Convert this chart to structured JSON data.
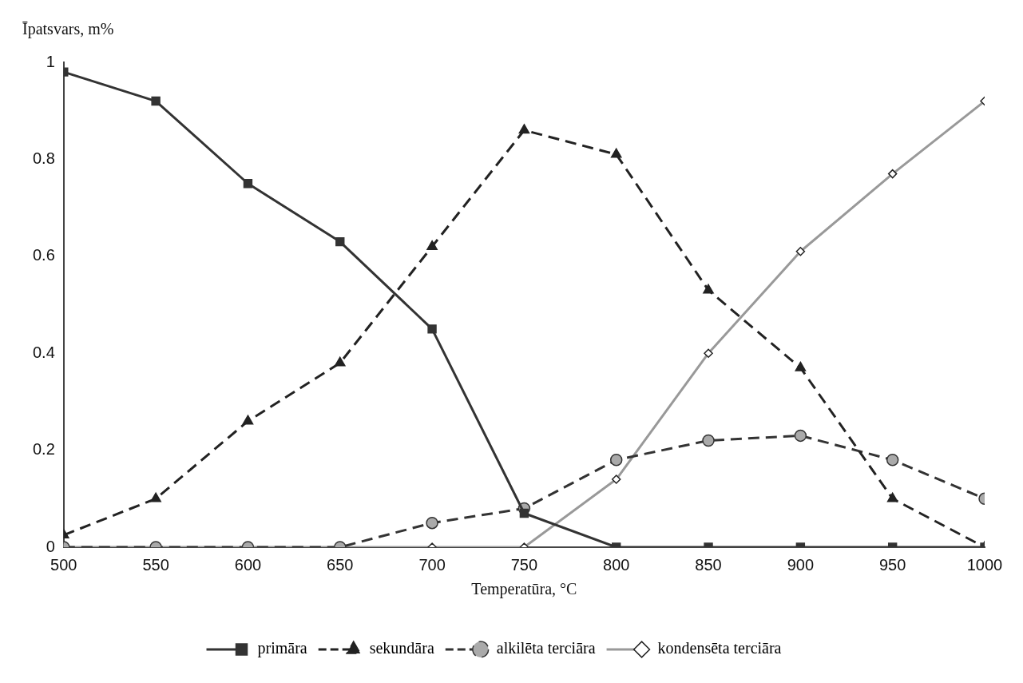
{
  "chart_data": {
    "type": "line",
    "xlabel": "Temperatūra, °C",
    "ylabel": "Īpatsvars, m%",
    "x": [
      500,
      550,
      600,
      650,
      700,
      750,
      800,
      850,
      900,
      950,
      1000
    ],
    "xlim": [
      500,
      1000
    ],
    "xticks": [
      500,
      550,
      600,
      650,
      700,
      750,
      800,
      850,
      900,
      950,
      1000
    ],
    "ylim": [
      0,
      1
    ],
    "yticks": [
      0,
      0.2,
      0.4,
      0.6,
      0.8,
      1
    ],
    "grid": false,
    "legend": "bottom",
    "series": [
      {
        "name": "primāra",
        "color": "#333333",
        "marker": "square",
        "line_style": "solid",
        "values": [
          0.98,
          0.92,
          0.75,
          0.63,
          0.45,
          0.07,
          0,
          0,
          0,
          0,
          0
        ]
      },
      {
        "name": "sekundāra",
        "color": "#222222",
        "marker": "triangle",
        "line_style": "dashed",
        "values": [
          0.025,
          0.1,
          0.26,
          0.38,
          0.62,
          0.86,
          0.81,
          0.53,
          0.37,
          0.1,
          0
        ]
      },
      {
        "name": "alkilēta terciāra",
        "color": "#333333",
        "marker": "circle",
        "line_style": "dashed",
        "values": [
          0,
          0,
          0,
          0,
          0.05,
          0.08,
          0.18,
          0.22,
          0.23,
          0.18,
          0.1
        ]
      },
      {
        "name": "kondensēta terciāra",
        "color": "#999999",
        "marker": "diamond",
        "line_style": "solid",
        "values": [
          0,
          0,
          0,
          0,
          0,
          0,
          0.14,
          0.4,
          0.61,
          0.77,
          0.92
        ]
      }
    ]
  }
}
